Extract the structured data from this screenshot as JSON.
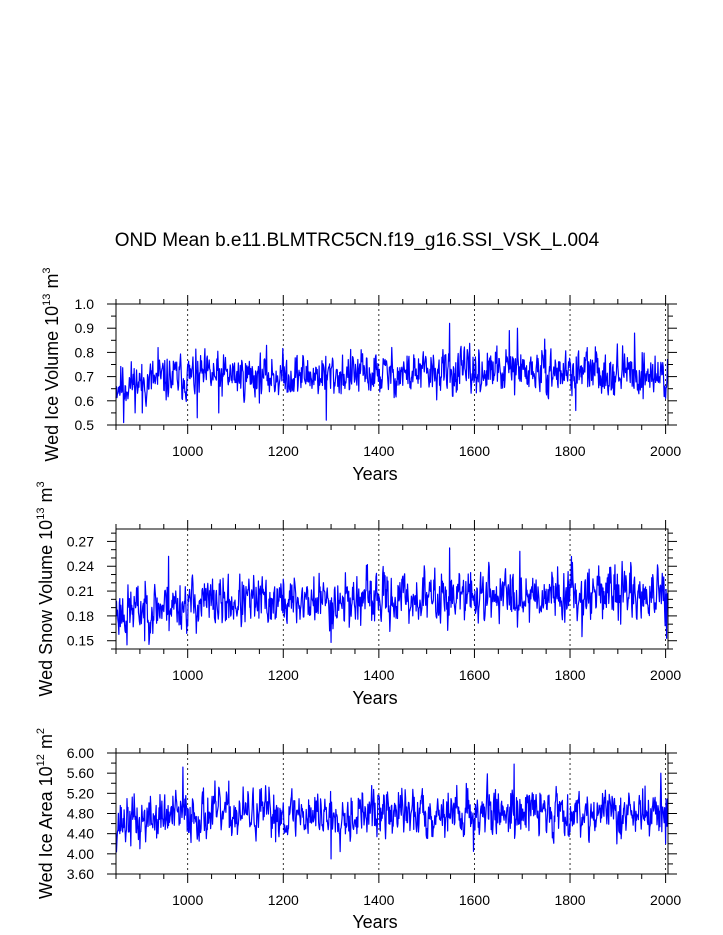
{
  "title": "OND Mean b.e11.BLMTRC5CN.f19_g16.SSI_VSK_L.004",
  "chart_data": [
    {
      "type": "line",
      "name": "ice-volume",
      "title": "OND Mean b.e11.BLMTRC5CN.f19_g16.SSI_VSK_L.004",
      "xlabel": "Years",
      "ylabel": {
        "main": "Wed Ice Volume 10",
        "exp": "13",
        "unit": " m",
        "unit_exp": "3"
      },
      "xlim": [
        850,
        2005
      ],
      "ylim": [
        0.5,
        1.0
      ],
      "xticks": [
        1000,
        1200,
        1400,
        1600,
        1800,
        2000
      ],
      "xticks_minor_step": 50,
      "yticks": [
        0.5,
        0.6,
        0.7,
        0.8,
        0.9,
        1.0
      ],
      "ytick_labels": [
        "0.5",
        "0.6",
        "0.7",
        "0.8",
        "0.9",
        "1.0"
      ],
      "yticks_minor_step": 0.05,
      "vgrid_dashed_at": [
        1000,
        1200,
        1400,
        1600,
        1800,
        2000
      ],
      "line_color": "#0000ff",
      "series": [
        {
          "name": "ice_volume",
          "x_start": 850,
          "x_end": 2005,
          "mean": 0.705,
          "sd": 0.047,
          "seed": 11,
          "features": [
            [
              866,
              0.51
            ],
            [
              905,
              0.55
            ],
            [
              938,
              0.82
            ],
            [
              1020,
              0.53
            ],
            [
              1065,
              0.55
            ],
            [
              1290,
              0.52
            ],
            [
              1548,
              0.92
            ],
            [
              1673,
              0.89
            ],
            [
              1690,
              0.9
            ],
            [
              1812,
              0.56
            ],
            [
              1935,
              0.88
            ],
            [
              2000,
              0.61
            ]
          ],
          "trends": [
            [
              850,
              0.665
            ],
            [
              1000,
              0.7
            ],
            [
              1400,
              0.71
            ],
            [
              1650,
              0.72
            ],
            [
              1900,
              0.72
            ],
            [
              2005,
              0.7
            ]
          ]
        }
      ]
    },
    {
      "type": "line",
      "name": "snow-volume",
      "xlabel": "Years",
      "ylabel": {
        "main": "Wed Snow Volume 10",
        "exp": "13",
        "unit": " m",
        "unit_exp": "3"
      },
      "xlim": [
        850,
        2005
      ],
      "ylim": [
        0.14,
        0.285
      ],
      "xticks": [
        1000,
        1200,
        1400,
        1600,
        1800,
        2000
      ],
      "xticks_minor_step": 50,
      "yticks": [
        0.15,
        0.18,
        0.21,
        0.24,
        0.27
      ],
      "ytick_labels": [
        "0.15",
        "0.18",
        "0.21",
        "0.24",
        "0.27"
      ],
      "yticks_minor_step": 0.01,
      "vgrid_dashed_at": [
        1000,
        1200,
        1400,
        1600,
        1800,
        2000
      ],
      "line_color": "#0000ff",
      "series": [
        {
          "name": "snow_volume",
          "x_start": 850,
          "x_end": 2005,
          "mean": 0.199,
          "sd": 0.016,
          "seed": 23,
          "features": [
            [
              873,
              0.145
            ],
            [
              910,
              0.15
            ],
            [
              960,
              0.252
            ],
            [
              1300,
              0.148
            ],
            [
              1548,
              0.262
            ],
            [
              1695,
              0.258
            ],
            [
              1825,
              0.155
            ],
            [
              2002,
              0.153
            ]
          ],
          "trends": [
            [
              850,
              0.185
            ],
            [
              1000,
              0.195
            ],
            [
              1400,
              0.2
            ],
            [
              1650,
              0.205
            ],
            [
              1900,
              0.21
            ],
            [
              2005,
              0.2
            ]
          ]
        }
      ]
    },
    {
      "type": "line",
      "name": "ice-area",
      "xlabel": "Years",
      "ylabel": {
        "main": "Wed Ice Area 10",
        "exp": "12",
        "unit": " m",
        "unit_exp": "2"
      },
      "xlim": [
        850,
        2005
      ],
      "ylim": [
        3.6,
        6.0
      ],
      "xticks": [
        1000,
        1200,
        1400,
        1600,
        1800,
        2000
      ],
      "xticks_minor_step": 50,
      "yticks": [
        3.6,
        4.0,
        4.4,
        4.8,
        5.2,
        5.6,
        6.0
      ],
      "ytick_labels": [
        "3.60",
        "4.00",
        "4.40",
        "4.80",
        "5.20",
        "5.60",
        "6.00"
      ],
      "yticks_minor_step": 0.2,
      "vgrid_dashed_at": [
        1000,
        1200,
        1400,
        1600,
        1800,
        2000
      ],
      "line_color": "#0000ff",
      "series": [
        {
          "name": "ice_area",
          "x_start": 850,
          "x_end": 2005,
          "mean": 4.79,
          "sd": 0.25,
          "seed": 37,
          "features": [
            [
              858,
              4.4
            ],
            [
              900,
              4.1
            ],
            [
              990,
              5.72
            ],
            [
              1300,
              3.9
            ],
            [
              1598,
              4.05
            ],
            [
              1683,
              5.78
            ],
            [
              2000,
              4.2
            ],
            [
              1990,
              5.6
            ]
          ],
          "trends": [
            [
              850,
              4.62
            ],
            [
              1000,
              4.78
            ],
            [
              1400,
              4.8
            ],
            [
              1700,
              4.85
            ],
            [
              1900,
              4.82
            ],
            [
              2005,
              4.8
            ]
          ]
        }
      ]
    }
  ]
}
